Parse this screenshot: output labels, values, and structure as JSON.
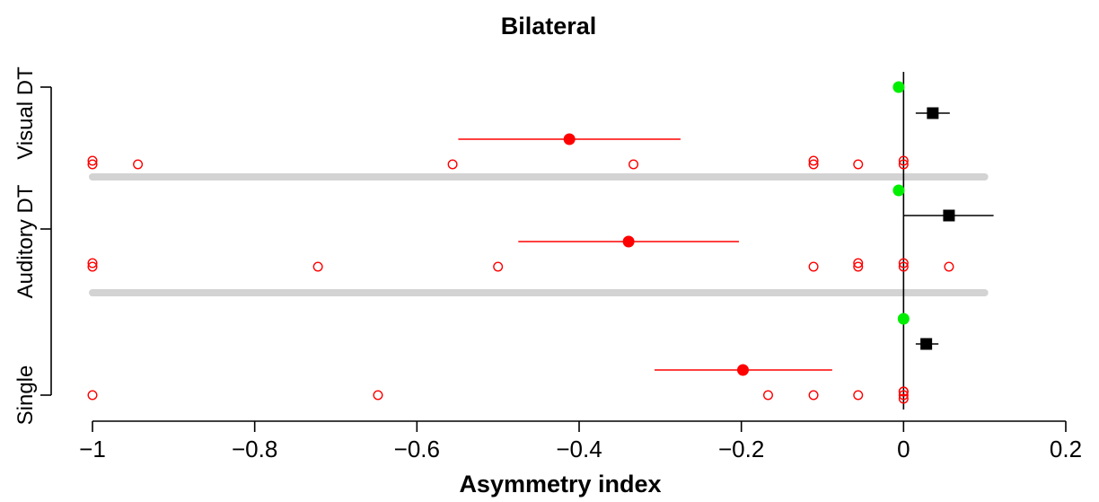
{
  "chart_data": {
    "type": "scatter",
    "title": "Bilateral",
    "xlabel": "Asymmetry index",
    "ylabel": "",
    "xlim": [
      -1,
      0.2
    ],
    "x_ticks": [
      -1,
      -0.8,
      -0.6,
      -0.4,
      -0.2,
      0,
      0.2
    ],
    "x_tick_labels": [
      "−1",
      "−0.8",
      "−0.6",
      "−0.4",
      "−0.2",
      "0",
      "0.2"
    ],
    "vertical_reference_line_x": 0,
    "groups": [
      {
        "label": "Single",
        "raw_points": [
          -1,
          -0.648,
          -0.167,
          -0.111,
          -0.056,
          0,
          0,
          0,
          0
        ],
        "red_mean": -0.198,
        "red_ci": [
          -0.307,
          -0.088
        ],
        "black_mean": 0.028,
        "black_ci": [
          0.015,
          0.043
        ],
        "green_value": 0
      },
      {
        "label": "Auditory DT",
        "raw_points": [
          -1,
          -1,
          -0.722,
          -0.5,
          -0.111,
          -0.056,
          -0.056,
          0,
          0,
          0.056
        ],
        "red_mean": -0.339,
        "red_ci": [
          -0.475,
          -0.203
        ],
        "black_mean": 0.056,
        "black_ci": [
          0,
          0.111
        ],
        "green_value": -0.006
      },
      {
        "label": "Visual DT",
        "raw_points": [
          -1,
          -1,
          -0.944,
          -0.556,
          -0.333,
          -0.111,
          -0.111,
          -0.056,
          0,
          0
        ],
        "red_mean": -0.412,
        "red_ci": [
          -0.549,
          -0.275
        ],
        "black_mean": 0.036,
        "black_ci": [
          0.015,
          0.057
        ],
        "green_value": -0.006
      }
    ],
    "separator_lines_x": [
      -1,
      0.1
    ],
    "colors": {
      "raw_points": "#ff0000",
      "red_mean": "#ff0000",
      "black_mean": "#000000",
      "green": "#00ee00",
      "separator": "#d3d3d3",
      "axis": "#000000"
    }
  }
}
